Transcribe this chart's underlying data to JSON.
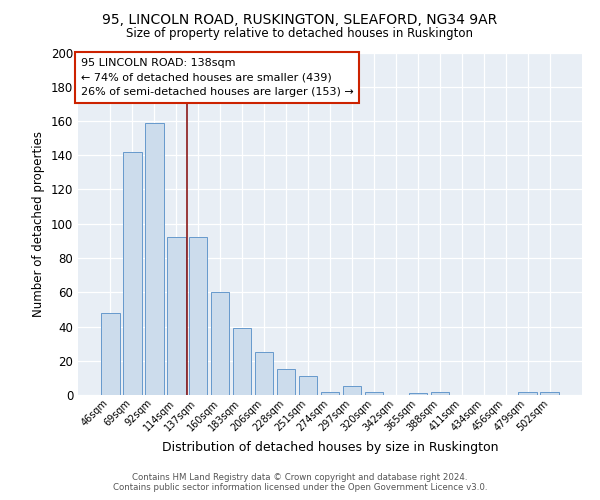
{
  "title1": "95, LINCOLN ROAD, RUSKINGTON, SLEAFORD, NG34 9AR",
  "title2": "Size of property relative to detached houses in Ruskington",
  "xlabel": "Distribution of detached houses by size in Ruskington",
  "ylabel": "Number of detached properties",
  "categories": [
    "46sqm",
    "69sqm",
    "92sqm",
    "114sqm",
    "137sqm",
    "160sqm",
    "183sqm",
    "206sqm",
    "228sqm",
    "251sqm",
    "274sqm",
    "297sqm",
    "320sqm",
    "342sqm",
    "365sqm",
    "388sqm",
    "411sqm",
    "434sqm",
    "456sqm",
    "479sqm",
    "502sqm"
  ],
  "values": [
    48,
    142,
    159,
    92,
    92,
    60,
    39,
    25,
    15,
    11,
    2,
    5,
    2,
    0,
    1,
    2,
    0,
    0,
    0,
    2,
    2
  ],
  "bar_color": "#ccdcec",
  "bar_edge_color": "#6699cc",
  "property_line_color": "#8b1a1a",
  "annotation_text": "95 LINCOLN ROAD: 138sqm\n← 74% of detached houses are smaller (439)\n26% of semi-detached houses are larger (153) →",
  "annotation_box_color": "#ffffff",
  "annotation_box_edge": "#cc2200",
  "ylim": [
    0,
    200
  ],
  "yticks": [
    0,
    20,
    40,
    60,
    80,
    100,
    120,
    140,
    160,
    180,
    200
  ],
  "footer1": "Contains HM Land Registry data © Crown copyright and database right 2024.",
  "footer2": "Contains public sector information licensed under the Open Government Licence v3.0.",
  "bg_color": "#ffffff"
}
